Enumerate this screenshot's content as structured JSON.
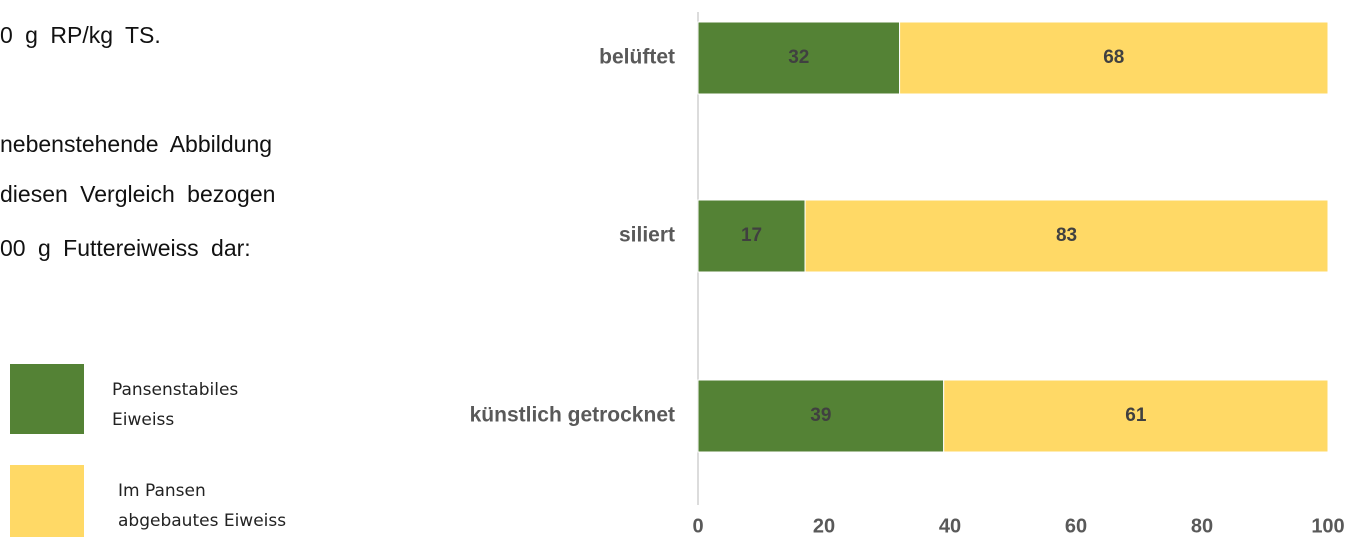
{
  "text": [
    "0 g RP/kg TS.",
    "nebenstehende Abbildung",
    "diesen Vergleich bezogen",
    "00 g Futtereiweiss dar:"
  ],
  "chart_data": {
    "type": "stacked-bar-horizontal",
    "categories": [
      "belüftet",
      "siliert",
      "künstlich getrocknet"
    ],
    "series": [
      {
        "name": "Pansenstabiles Eiweiss",
        "color": "#548235",
        "values": [
          32,
          17,
          39
        ]
      },
      {
        "name": "Im Pansen abgebautes Eiweiss",
        "color": "#ffd966",
        "values": [
          68,
          83,
          61
        ]
      }
    ],
    "xlim": [
      0,
      100
    ],
    "xticks": [
      0,
      20,
      40,
      60,
      80,
      100
    ]
  }
}
